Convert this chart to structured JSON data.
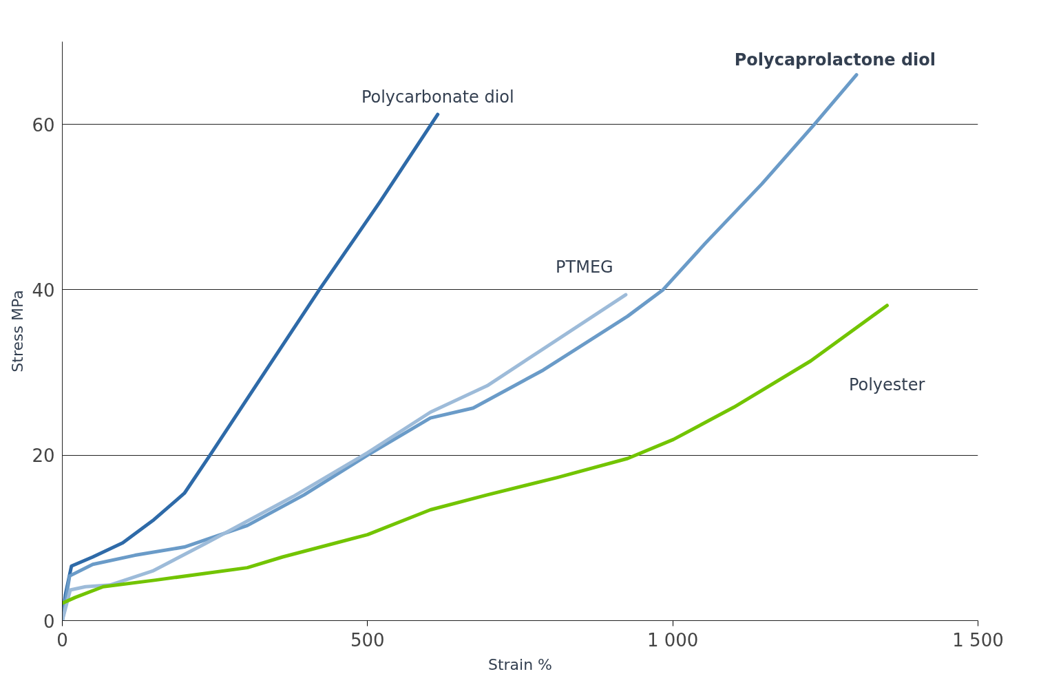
{
  "chart_data": {
    "type": "line",
    "xlabel": "Strain %",
    "ylabel": "Stress MPa",
    "xlim": [
      0,
      1500
    ],
    "ylim": [
      0,
      70
    ],
    "xticks": [
      0,
      500,
      {
        "value": 1000,
        "label": "1 000"
      },
      {
        "value": 1500,
        "label": "1 500"
      }
    ],
    "yticks": [
      0,
      20,
      40,
      60
    ],
    "grid": "y",
    "marker": "none",
    "line_style": "solid",
    "series": [
      {
        "name": "Polycarbonate diol",
        "color": "#2e6aa8",
        "x": [
          0,
          5,
          15,
          50,
          99,
          150,
          200,
          242,
          300,
          360,
          421,
          520,
          615
        ],
        "values": [
          0,
          3.1,
          6.6,
          7.7,
          9.4,
          12.2,
          15.4,
          20,
          26.5,
          33.2,
          40,
          50.6,
          61.2
        ]
      },
      {
        "name": "Polycaprolactone diol",
        "color": "#6a9bc8",
        "x": [
          0,
          12,
          50,
          119,
          200,
          303,
          396,
          500,
          603,
          673,
          788,
          926,
          984,
          1053,
          1146,
          1232,
          1301
        ],
        "values": [
          0,
          5.4,
          6.8,
          7.9,
          8.9,
          11.5,
          15.2,
          20,
          24.5,
          25.7,
          30.3,
          36.8,
          40,
          45.6,
          52.8,
          60,
          66
        ]
      },
      {
        "name": "PTMEG",
        "color": "#9dbbd9",
        "x": [
          0,
          13,
          38,
          78,
          148,
          234,
          378,
          500,
          603,
          696,
          923
        ],
        "values": [
          0,
          3.7,
          4.1,
          4.3,
          6,
          9.3,
          15,
          20.3,
          25.2,
          28.4,
          39.4
        ]
      },
      {
        "name": "Polyester",
        "color": "#72c400",
        "x": [
          0,
          21,
          67,
          153,
          303,
          361,
          500,
          603,
          696,
          811,
          926,
          1001,
          1100,
          1226,
          1351
        ],
        "values": [
          2.1,
          2.8,
          4.1,
          4.9,
          6.4,
          7.7,
          10.4,
          13.4,
          15.2,
          17.3,
          19.6,
          21.9,
          25.8,
          31.4,
          38.1
        ]
      }
    ]
  }
}
